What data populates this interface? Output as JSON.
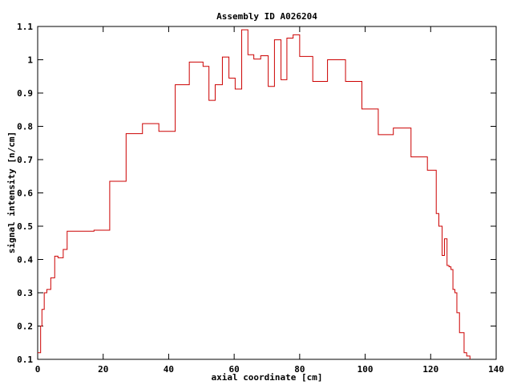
{
  "chart_data": {
    "type": "line",
    "style": "step",
    "title": "Assembly ID A026204",
    "xlabel": "axial coordinate [cm]",
    "ylabel": "signal intensity [n/cm]",
    "xlim": [
      0,
      140
    ],
    "ylim": [
      0.1,
      1.1
    ],
    "xticks": [
      0,
      20,
      40,
      60,
      80,
      100,
      120,
      140
    ],
    "xtick_labels": [
      "0",
      "20",
      "40",
      "60",
      "80",
      "100",
      "120",
      "140"
    ],
    "yticks": [
      0.1,
      0.2,
      0.3,
      0.4,
      0.5,
      0.6,
      0.7,
      0.8,
      0.9,
      1.0,
      1.1
    ],
    "ytick_labels": [
      "0.1",
      "0.2",
      "0.3",
      "0.4",
      "0.5",
      "0.6",
      "0.7",
      "0.8",
      "0.9",
      "1",
      "1.1"
    ],
    "grid": false,
    "line_color": "#cc0000",
    "series": [
      {
        "name": "signal",
        "edges": [
          0,
          0.9,
          1.3,
          2.0,
          2.8,
          4.0,
          5.2,
          6.2,
          7.8,
          9.0,
          17.2,
          22.0,
          27.0,
          32.0,
          37.0,
          42.0,
          46.3,
          50.5,
          52.3,
          54.2,
          56.4,
          58.4,
          60.3,
          62.3,
          64.2,
          66.0,
          68.1,
          70.4,
          72.3,
          74.3,
          76.1,
          78.0,
          80.0,
          84.0,
          88.5,
          94.0,
          99.0,
          104.0,
          108.6,
          114.0,
          119.0,
          121.7,
          122.5,
          123.5,
          124.2,
          125.0,
          125.6,
          126.2,
          126.8,
          127.4,
          128.0,
          128.8,
          130.2,
          131.0,
          132.0
        ],
        "values": [
          0.12,
          0.2,
          0.25,
          0.3,
          0.31,
          0.345,
          0.41,
          0.405,
          0.43,
          0.485,
          0.488,
          0.635,
          0.778,
          0.808,
          0.785,
          0.925,
          0.993,
          0.98,
          0.878,
          0.925,
          1.008,
          0.945,
          0.912,
          1.09,
          1.015,
          1.002,
          1.012,
          0.92,
          1.06,
          0.94,
          1.065,
          1.075,
          1.01,
          0.935,
          1.0,
          0.935,
          0.852,
          0.775,
          0.795,
          0.708,
          0.668,
          0.538,
          0.5,
          0.412,
          0.462,
          0.382,
          0.378,
          0.37,
          0.31,
          0.3,
          0.24,
          0.18,
          0.12,
          0.11
        ]
      }
    ]
  }
}
